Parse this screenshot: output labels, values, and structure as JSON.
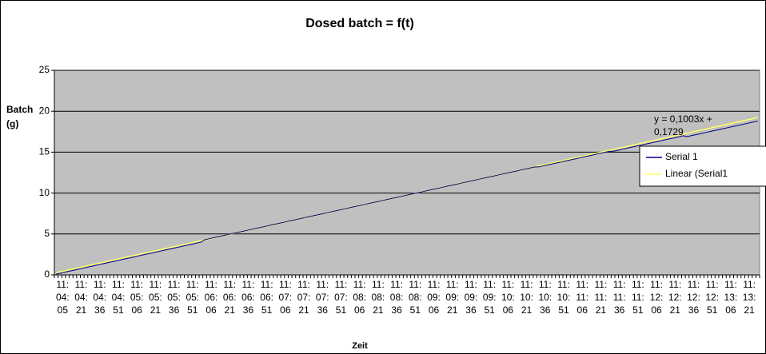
{
  "chart_data": {
    "type": "line",
    "title": "Dosed batch = f(t)",
    "y_label": "Batch (g)",
    "x_label": "Zeit",
    "categories": [
      "11:04:05",
      null,
      null,
      null,
      null,
      "11:04:21",
      null,
      null,
      null,
      null,
      "11:04:36",
      null,
      null,
      null,
      null,
      "11:04:51",
      null,
      null,
      null,
      null,
      "11:05:06",
      null,
      null,
      null,
      null,
      "11:05:21",
      null,
      null,
      null,
      null,
      "11:05:36",
      null,
      null,
      null,
      null,
      "11:05:51",
      null,
      null,
      null,
      null,
      "11:06:06",
      null,
      null,
      null,
      null,
      "11:06:21",
      null,
      null,
      null,
      null,
      "11:06:36",
      null,
      null,
      null,
      null,
      "11:06:51",
      null,
      null,
      null,
      null,
      "11:07:06",
      null,
      null,
      null,
      null,
      "11:07:21",
      null,
      null,
      null,
      null,
      "11:07:36",
      null,
      null,
      null,
      null,
      "11:07:51",
      null,
      null,
      null,
      null,
      "11:08:06",
      null,
      null,
      null,
      null,
      "11:08:21",
      null,
      null,
      null,
      null,
      "11:08:36",
      null,
      null,
      null,
      null,
      "11:08:51",
      null,
      null,
      null,
      null,
      "11:09:06",
      null,
      null,
      null,
      null,
      "11:09:21",
      null,
      null,
      null,
      null,
      "11:09:36",
      null,
      null,
      null,
      null,
      "11:09:51",
      null,
      null,
      null,
      null,
      "11:10:06",
      null,
      null,
      null,
      null,
      "11:10:21",
      null,
      null,
      null,
      null,
      "11:10:36",
      null,
      null,
      null,
      null,
      "11:10:51",
      null,
      null,
      null,
      null,
      "11:11:06",
      null,
      null,
      null,
      null,
      "11:11:21",
      null,
      null,
      null,
      null,
      "11:11:36",
      null,
      null,
      null,
      null,
      "11:11:51",
      null,
      null,
      null,
      null,
      "11:12:06",
      null,
      null,
      null,
      null,
      "11:12:21",
      null,
      null,
      null,
      null,
      "11:12:36",
      null,
      null,
      null,
      null,
      "11:12:51",
      null,
      null,
      null,
      null,
      "11:13:06",
      null,
      null,
      null,
      null,
      "11:13:21",
      null,
      null,
      null,
      null
    ],
    "series": [
      {
        "name": "Serial 1",
        "color": "#000080",
        "values": [
          0.1,
          0.2,
          0.3,
          0.4,
          0.5,
          0.6,
          0.7,
          0.8,
          0.9,
          1.0,
          1.1,
          1.2,
          1.3,
          1.4,
          1.5,
          1.6,
          1.7,
          1.8,
          1.9,
          2.0,
          2.1,
          2.2,
          2.3,
          2.4,
          2.5,
          2.6,
          2.7,
          2.8,
          2.9,
          3.0,
          3.1,
          3.2,
          3.3,
          3.4,
          3.5,
          3.6,
          3.7,
          3.8,
          3.9,
          4.0,
          4.3,
          4.4,
          4.5,
          4.6,
          4.7,
          4.8,
          4.9,
          5.0,
          5.1,
          5.2,
          5.3,
          5.4,
          5.5,
          5.6,
          5.7,
          5.8,
          5.9,
          6.0,
          6.1,
          6.2,
          6.3,
          6.4,
          6.5,
          6.6,
          6.7,
          6.8,
          6.9,
          7.0,
          7.1,
          7.2,
          7.3,
          7.4,
          7.5,
          7.6,
          7.7,
          7.8,
          7.9,
          8.0,
          8.1,
          8.2,
          8.3,
          8.4,
          8.5,
          8.6,
          8.7,
          8.8,
          8.9,
          9.0,
          9.1,
          9.2,
          9.3,
          9.4,
          9.5,
          9.6,
          9.7,
          9.8,
          9.9,
          10.0,
          10.1,
          10.2,
          10.3,
          10.4,
          10.5,
          10.6,
          10.7,
          10.8,
          10.9,
          11.0,
          11.1,
          11.2,
          11.3,
          11.4,
          11.5,
          11.6,
          11.7,
          11.8,
          11.9,
          12.0,
          12.1,
          12.2,
          12.3,
          12.4,
          12.5,
          12.6,
          12.7,
          12.8,
          12.9,
          13.0,
          13.1,
          13.2,
          13.2,
          13.3,
          13.4,
          13.5,
          13.6,
          13.7,
          13.8,
          13.9,
          14.0,
          14.1,
          14.2,
          14.3,
          14.4,
          14.5,
          14.6,
          14.7,
          14.8,
          14.9,
          15.0,
          15.1,
          15.1,
          15.2,
          15.3,
          15.4,
          15.5,
          15.6,
          15.7,
          15.8,
          15.9,
          16.0,
          16.1,
          16.2,
          16.3,
          16.4,
          16.5,
          16.6,
          16.7,
          16.8,
          16.9,
          17.0,
          16.9,
          17.0,
          17.1,
          17.2,
          17.3,
          17.4,
          17.5,
          17.6,
          17.7,
          17.8,
          17.9,
          18.0,
          18.1,
          18.2,
          18.3,
          18.4,
          18.5,
          18.6,
          18.7,
          18.8
        ]
      }
    ],
    "trendline": {
      "name": "Linear (Serial1",
      "color": "#ffff66",
      "slope": 0.1003,
      "intercept": 0.1729,
      "equation": [
        "y = 0,1003x +",
        "0,1729"
      ]
    },
    "ylim": [
      0,
      25
    ],
    "yticks": [
      0,
      5,
      10,
      15,
      20,
      25
    ],
    "grid": true,
    "plot_background": "#c0c0c0",
    "legend": "right"
  }
}
